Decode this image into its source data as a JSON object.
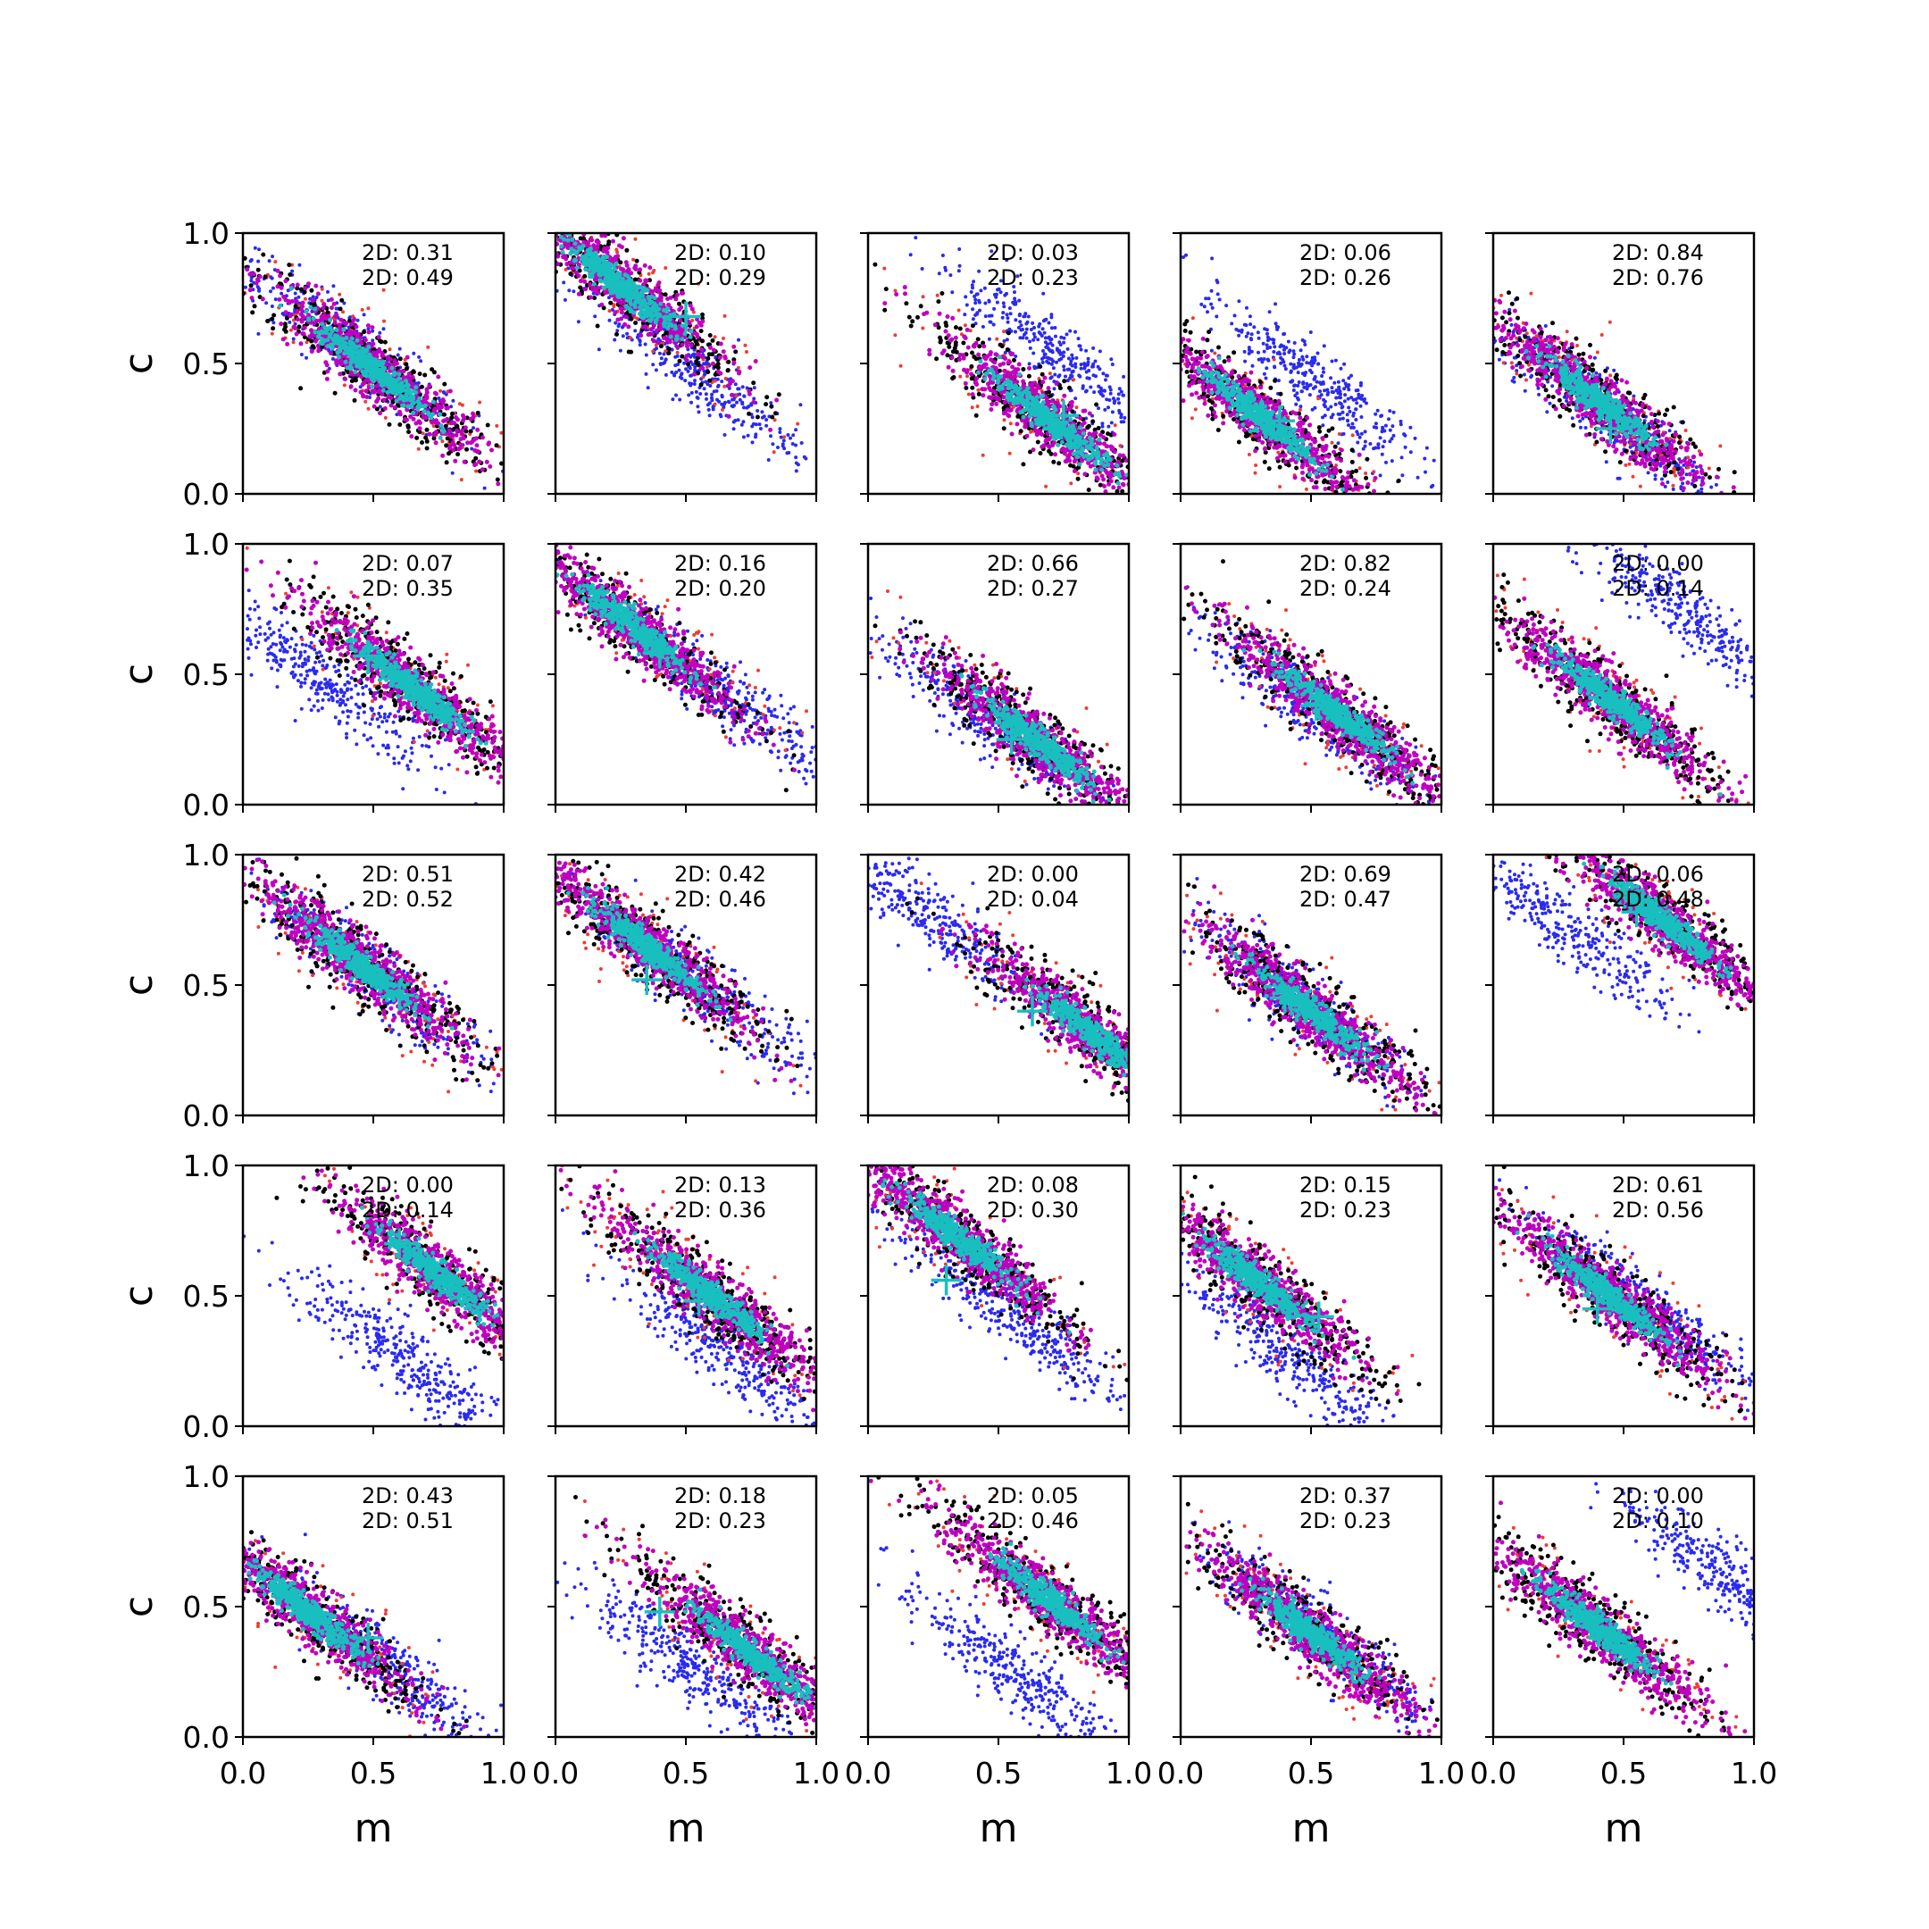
{
  "figure": {
    "xlabel": "m",
    "ylabel": "c",
    "xlim": [
      0,
      1
    ],
    "ylim": [
      0,
      1
    ],
    "xticks": [
      "0.0",
      "0.5",
      "1.0"
    ],
    "yticks": [
      "0.0",
      "0.5",
      "1.0"
    ],
    "stat_prefix": "2D: "
  },
  "chart_data": {
    "type": "scatter",
    "layout": "5x5 grid of scatter panels",
    "xlabel": "m",
    "ylabel": "c",
    "xlim": [
      0,
      1
    ],
    "ylim": [
      0,
      1
    ],
    "grid": false,
    "colors": {
      "red_points": "#f03c32",
      "blue_points": "#2a2af0",
      "black_points": "#000000",
      "magenta_points": "#c000c0",
      "cyan_points": "#19bfbf",
      "marker_cross": "#19bfbf"
    },
    "panels": [
      {
        "row": 0,
        "col": 0,
        "stat1": "0.31",
        "stat2": "0.49",
        "blue_center": [
          0.4,
          0.58
        ],
        "black_center": [
          0.5,
          0.48
        ],
        "cross": null
      },
      {
        "row": 0,
        "col": 1,
        "stat1": "0.10",
        "stat2": "0.29",
        "blue_center": [
          0.5,
          0.5
        ],
        "black_center": [
          0.25,
          0.8
        ],
        "cross": [
          0.5,
          0.68
        ]
      },
      {
        "row": 0,
        "col": 2,
        "stat1": "0.03",
        "stat2": "0.23",
        "blue_center": [
          0.7,
          0.55
        ],
        "black_center": [
          0.7,
          0.28
        ],
        "cross": [
          0.75,
          0.3
        ]
      },
      {
        "row": 0,
        "col": 3,
        "stat1": "0.06",
        "stat2": "0.26",
        "blue_center": [
          0.5,
          0.44
        ],
        "black_center": [
          0.3,
          0.3
        ],
        "cross": [
          0.38,
          0.28
        ]
      },
      {
        "row": 0,
        "col": 4,
        "stat1": "0.84",
        "stat2": "0.76",
        "blue_center": [
          0.45,
          0.3
        ],
        "black_center": [
          0.4,
          0.36
        ],
        "cross": [
          0.45,
          0.25
        ]
      },
      {
        "row": 1,
        "col": 0,
        "stat1": "0.07",
        "stat2": "0.35",
        "blue_center": [
          0.3,
          0.48
        ],
        "black_center": [
          0.65,
          0.45
        ],
        "cross": [
          0.48,
          0.57
        ]
      },
      {
        "row": 1,
        "col": 1,
        "stat1": "0.16",
        "stat2": "0.20",
        "blue_center": [
          0.65,
          0.42
        ],
        "black_center": [
          0.3,
          0.68
        ],
        "cross": [
          0.4,
          0.58
        ]
      },
      {
        "row": 1,
        "col": 2,
        "stat1": "0.66",
        "stat2": "0.27",
        "blue_center": [
          0.45,
          0.33
        ],
        "black_center": [
          0.65,
          0.24
        ],
        "cross": [
          0.55,
          0.25
        ]
      },
      {
        "row": 1,
        "col": 3,
        "stat1": "0.82",
        "stat2": "0.24",
        "blue_center": [
          0.5,
          0.37
        ],
        "black_center": [
          0.6,
          0.35
        ],
        "cross": [
          0.52,
          0.38
        ]
      },
      {
        "row": 1,
        "col": 4,
        "stat1": "0.00",
        "stat2": "0.14",
        "blue_center": [
          0.75,
          0.73
        ],
        "black_center": [
          0.45,
          0.4
        ],
        "cross": [
          0.45,
          0.42
        ]
      },
      {
        "row": 2,
        "col": 0,
        "stat1": "0.51",
        "stat2": "0.52",
        "blue_center": [
          0.5,
          0.55
        ],
        "black_center": [
          0.45,
          0.58
        ],
        "cross": [
          0.6,
          0.46
        ]
      },
      {
        "row": 2,
        "col": 1,
        "stat1": "0.42",
        "stat2": "0.46",
        "blue_center": [
          0.55,
          0.5
        ],
        "black_center": [
          0.35,
          0.65
        ],
        "cross": [
          0.35,
          0.52
        ]
      },
      {
        "row": 2,
        "col": 2,
        "stat1": "0.00",
        "stat2": "0.04",
        "blue_center": [
          0.2,
          0.8
        ],
        "black_center": [
          0.85,
          0.32
        ],
        "cross": [
          0.63,
          0.4
        ]
      },
      {
        "row": 2,
        "col": 3,
        "stat1": "0.69",
        "stat2": "0.47",
        "blue_center": [
          0.45,
          0.45
        ],
        "black_center": [
          0.5,
          0.4
        ],
        "cross": [
          0.4,
          0.45
        ]
      },
      {
        "row": 2,
        "col": 4,
        "stat1": "0.06",
        "stat2": "0.48",
        "blue_center": [
          0.25,
          0.75
        ],
        "black_center": [
          0.65,
          0.75
        ],
        "cross": [
          0.55,
          0.78
        ]
      },
      {
        "row": 3,
        "col": 0,
        "stat1": "0.00",
        "stat2": "0.14",
        "blue_center": [
          0.62,
          0.25
        ],
        "black_center": [
          0.75,
          0.58
        ],
        "cross": [
          0.6,
          0.7
        ]
      },
      {
        "row": 3,
        "col": 1,
        "stat1": "0.13",
        "stat2": "0.36",
        "blue_center": [
          0.65,
          0.28
        ],
        "black_center": [
          0.6,
          0.5
        ],
        "cross": [
          0.55,
          0.48
        ]
      },
      {
        "row": 3,
        "col": 2,
        "stat1": "0.08",
        "stat2": "0.30",
        "blue_center": [
          0.55,
          0.42
        ],
        "black_center": [
          0.35,
          0.72
        ],
        "cross": [
          0.3,
          0.56
        ]
      },
      {
        "row": 3,
        "col": 3,
        "stat1": "0.15",
        "stat2": "0.23",
        "blue_center": [
          0.4,
          0.28
        ],
        "black_center": [
          0.3,
          0.55
        ],
        "cross": [
          0.53,
          0.42
        ]
      },
      {
        "row": 3,
        "col": 4,
        "stat1": "0.61",
        "stat2": "0.56",
        "blue_center": [
          0.6,
          0.45
        ],
        "black_center": [
          0.45,
          0.5
        ],
        "cross": [
          0.4,
          0.45
        ]
      },
      {
        "row": 4,
        "col": 0,
        "stat1": "0.43",
        "stat2": "0.51",
        "blue_center": [
          0.55,
          0.28
        ],
        "black_center": [
          0.25,
          0.48
        ],
        "cross": [
          0.48,
          0.38
        ]
      },
      {
        "row": 4,
        "col": 1,
        "stat1": "0.18",
        "stat2": "0.23",
        "blue_center": [
          0.5,
          0.28
        ],
        "black_center": [
          0.75,
          0.32
        ],
        "cross": [
          0.4,
          0.48
        ]
      },
      {
        "row": 4,
        "col": 2,
        "stat1": "0.05",
        "stat2": "0.46",
        "blue_center": [
          0.55,
          0.25
        ],
        "black_center": [
          0.7,
          0.52
        ],
        "cross": [
          0.7,
          0.55
        ]
      },
      {
        "row": 4,
        "col": 3,
        "stat1": "0.37",
        "stat2": "0.23",
        "blue_center": [
          0.55,
          0.38
        ],
        "black_center": [
          0.5,
          0.4
        ],
        "cross": [
          0.45,
          0.42
        ]
      },
      {
        "row": 4,
        "col": 4,
        "stat1": "0.00",
        "stat2": "0.10",
        "blue_center": [
          0.9,
          0.6
        ],
        "black_center": [
          0.4,
          0.42
        ],
        "cross": [
          0.4,
          0.45
        ]
      }
    ]
  }
}
